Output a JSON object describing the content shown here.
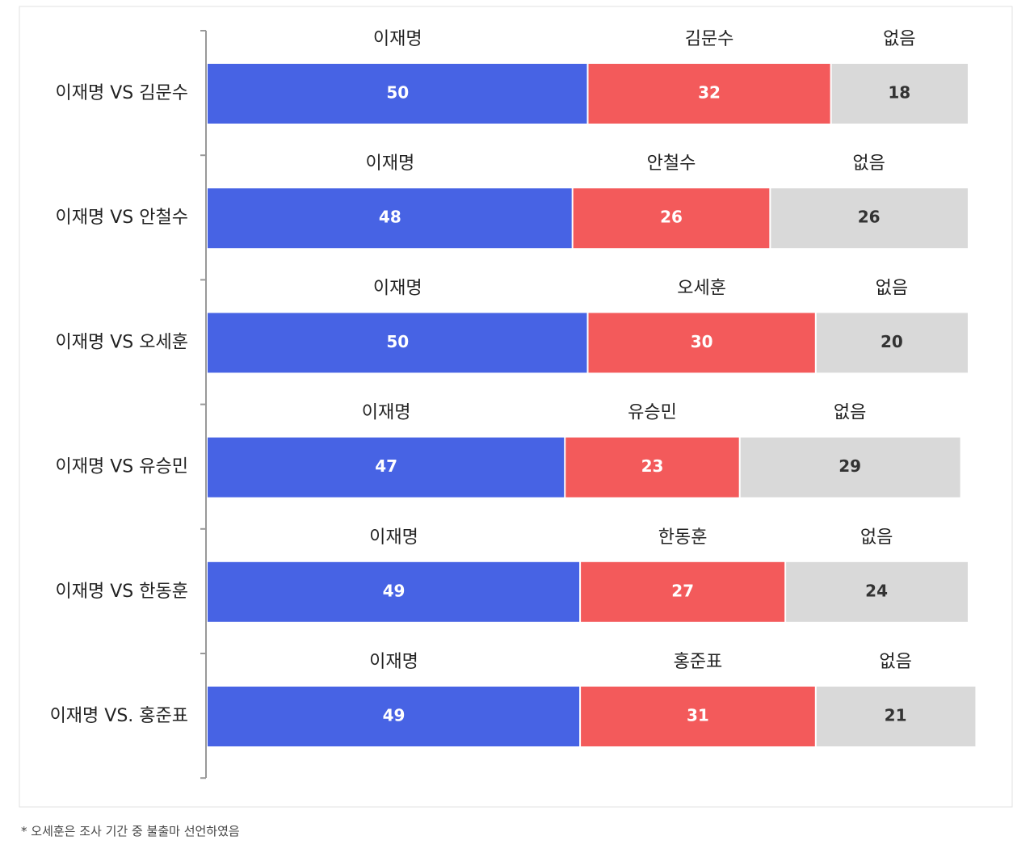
{
  "chart_data": {
    "type": "stacked-bar",
    "categories": [
      "이재명 VS 김문수",
      "이재명 VS 안철수",
      "이재명 VS 오세훈",
      "이재명 VS 유승민",
      "이재명 VS 한동훈",
      "이재명 VS. 홍준표"
    ],
    "series": [
      {
        "names": [
          "이재명",
          "이재명",
          "이재명",
          "이재명",
          "이재명",
          "이재명"
        ],
        "color": "#4763e4",
        "label_color": "#ffffff",
        "values": [
          50,
          48,
          50,
          47,
          49,
          49
        ]
      },
      {
        "names": [
          "김문수",
          "안철수",
          "오세훈",
          "유승민",
          "한동훈",
          "홍준표"
        ],
        "color": "#f35a5b",
        "label_color": "#ffffff",
        "values": [
          32,
          26,
          30,
          23,
          27,
          31
        ]
      },
      {
        "names": [
          "없음",
          "없음",
          "없음",
          "없음",
          "없음",
          "없음"
        ],
        "color": "#d9d9d9",
        "label_color": "#333333",
        "values": [
          18,
          26,
          20,
          29,
          24,
          21
        ]
      }
    ],
    "xlim": [
      0,
      100
    ],
    "note": "* 오세훈은 조사 기간 중 불출마 선언하였음"
  }
}
